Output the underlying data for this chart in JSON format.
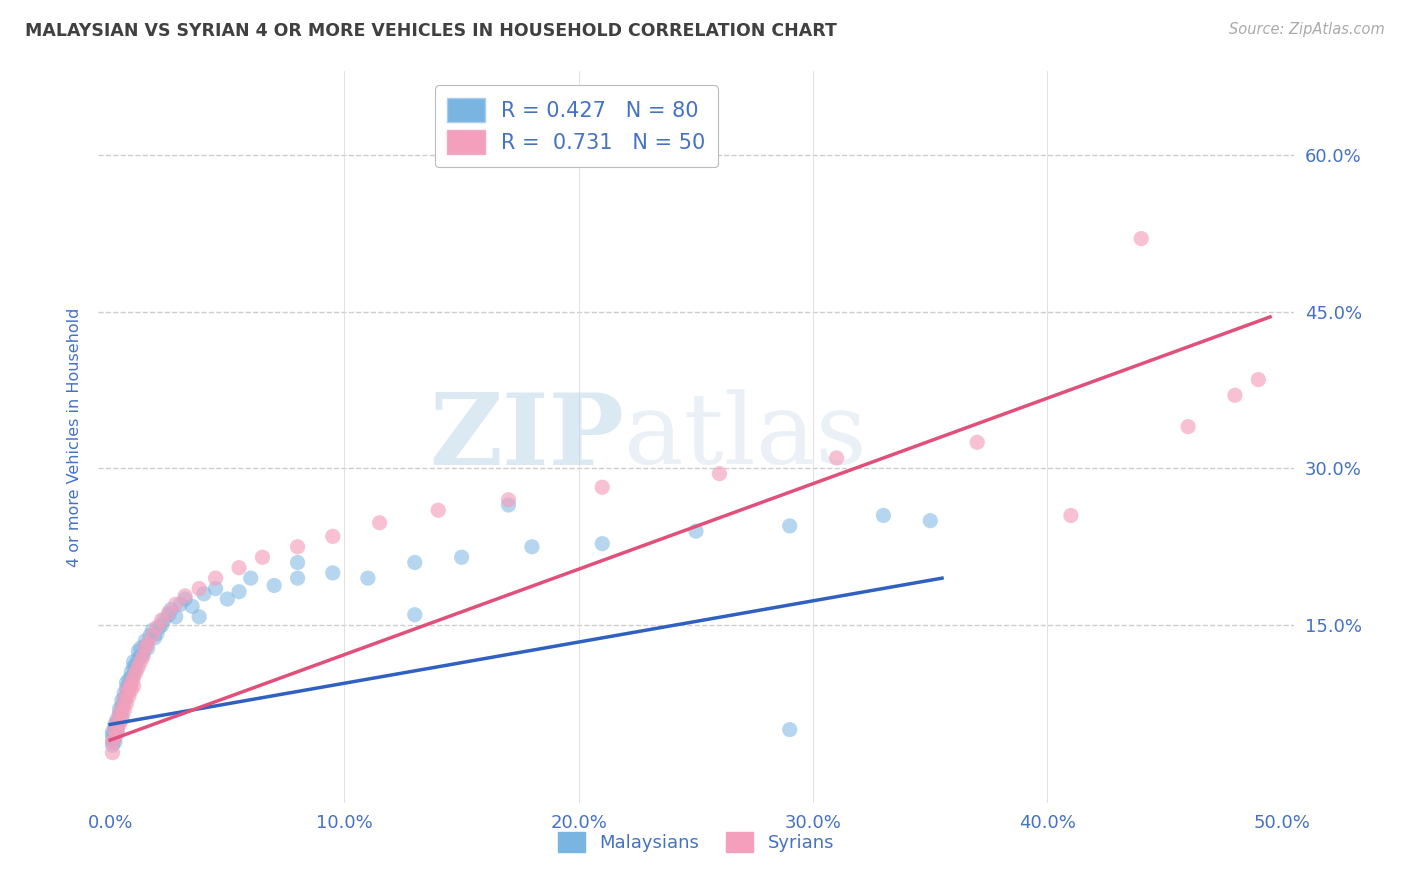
{
  "title": "MALAYSIAN VS SYRIAN 4 OR MORE VEHICLES IN HOUSEHOLD CORRELATION CHART",
  "source": "Source: ZipAtlas.com",
  "ylabel": "4 or more Vehicles in Household",
  "xlim": [
    -0.005,
    0.505
  ],
  "ylim": [
    -0.02,
    0.68
  ],
  "yticks": [
    0.15,
    0.3,
    0.45,
    0.6
  ],
  "ytick_labels": [
    "15.0%",
    "30.0%",
    "45.0%",
    "60.0%"
  ],
  "xticks": [
    0.0,
    0.1,
    0.2,
    0.3,
    0.4,
    0.5
  ],
  "xtick_labels": [
    "0.0%",
    "10.0%",
    "20.0%",
    "30.0%",
    "40.0%",
    "50.0%"
  ],
  "blue_color": "#7ab4e0",
  "pink_color": "#f4a0bc",
  "trend_blue": "#3060c0",
  "trend_pink": "#e0507a",
  "R_malaysian": 0.427,
  "N_malaysian": 80,
  "R_syrian": 0.731,
  "N_syrian": 50,
  "watermark_zip": "ZIP",
  "watermark_atlas": "atlas",
  "background_color": "#ffffff",
  "grid_color": "#c8c8c8",
  "title_color": "#404040",
  "axis_label_color": "#4472c4",
  "tick_color": "#4472c4",
  "mal_trend_x0": 0.0,
  "mal_trend_y0": 0.055,
  "mal_trend_x1": 0.355,
  "mal_trend_y1": 0.195,
  "syr_trend_x0": 0.0,
  "syr_trend_y0": 0.04,
  "syr_trend_x1": 0.495,
  "syr_trend_y1": 0.445,
  "malaysian_x": [
    0.001,
    0.001,
    0.001,
    0.001,
    0.002,
    0.002,
    0.002,
    0.002,
    0.002,
    0.003,
    0.003,
    0.003,
    0.003,
    0.004,
    0.004,
    0.004,
    0.005,
    0.005,
    0.005,
    0.005,
    0.006,
    0.006,
    0.006,
    0.007,
    0.007,
    0.007,
    0.008,
    0.008,
    0.008,
    0.009,
    0.009,
    0.009,
    0.01,
    0.01,
    0.01,
    0.011,
    0.011,
    0.012,
    0.012,
    0.013,
    0.013,
    0.014,
    0.015,
    0.015,
    0.016,
    0.017,
    0.018,
    0.019,
    0.02,
    0.021,
    0.022,
    0.023,
    0.025,
    0.026,
    0.028,
    0.03,
    0.032,
    0.035,
    0.038,
    0.04,
    0.045,
    0.05,
    0.055,
    0.06,
    0.07,
    0.08,
    0.095,
    0.11,
    0.13,
    0.15,
    0.18,
    0.21,
    0.25,
    0.29,
    0.33,
    0.35,
    0.17,
    0.08,
    0.13,
    0.29
  ],
  "malaysian_y": [
    0.04,
    0.045,
    0.048,
    0.035,
    0.042,
    0.05,
    0.038,
    0.045,
    0.055,
    0.052,
    0.048,
    0.06,
    0.055,
    0.058,
    0.065,
    0.07,
    0.062,
    0.068,
    0.072,
    0.078,
    0.075,
    0.08,
    0.085,
    0.082,
    0.09,
    0.095,
    0.088,
    0.092,
    0.098,
    0.095,
    0.1,
    0.105,
    0.102,
    0.11,
    0.115,
    0.108,
    0.112,
    0.118,
    0.125,
    0.12,
    0.128,
    0.122,
    0.13,
    0.135,
    0.128,
    0.14,
    0.145,
    0.138,
    0.142,
    0.148,
    0.15,
    0.155,
    0.16,
    0.165,
    0.158,
    0.17,
    0.175,
    0.168,
    0.158,
    0.18,
    0.185,
    0.175,
    0.182,
    0.195,
    0.188,
    0.195,
    0.2,
    0.195,
    0.21,
    0.215,
    0.225,
    0.228,
    0.24,
    0.245,
    0.255,
    0.25,
    0.265,
    0.21,
    0.16,
    0.05
  ],
  "syrian_x": [
    0.001,
    0.001,
    0.002,
    0.002,
    0.003,
    0.003,
    0.004,
    0.004,
    0.005,
    0.005,
    0.006,
    0.006,
    0.007,
    0.007,
    0.008,
    0.008,
    0.009,
    0.009,
    0.01,
    0.01,
    0.011,
    0.012,
    0.013,
    0.014,
    0.015,
    0.016,
    0.018,
    0.02,
    0.022,
    0.025,
    0.028,
    0.032,
    0.038,
    0.045,
    0.055,
    0.065,
    0.08,
    0.095,
    0.115,
    0.14,
    0.17,
    0.21,
    0.26,
    0.31,
    0.37,
    0.41,
    0.44,
    0.46,
    0.48,
    0.49
  ],
  "syrian_y": [
    0.028,
    0.038,
    0.042,
    0.05,
    0.048,
    0.058,
    0.055,
    0.065,
    0.06,
    0.07,
    0.068,
    0.078,
    0.075,
    0.085,
    0.082,
    0.09,
    0.088,
    0.095,
    0.092,
    0.1,
    0.105,
    0.11,
    0.115,
    0.12,
    0.128,
    0.132,
    0.14,
    0.148,
    0.155,
    0.162,
    0.17,
    0.178,
    0.185,
    0.195,
    0.205,
    0.215,
    0.225,
    0.235,
    0.248,
    0.26,
    0.27,
    0.282,
    0.295,
    0.31,
    0.325,
    0.255,
    0.52,
    0.34,
    0.37,
    0.385
  ]
}
